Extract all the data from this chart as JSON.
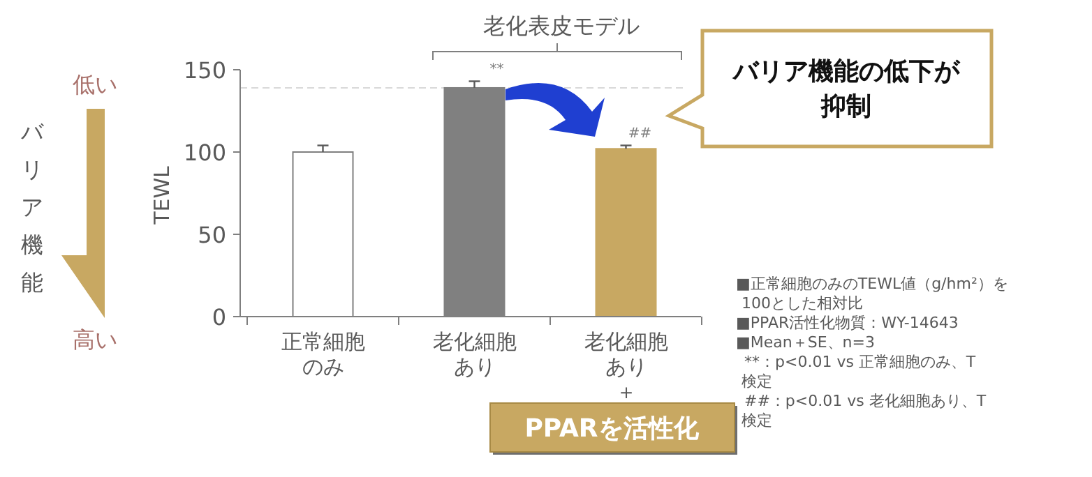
{
  "chart_data": {
    "type": "bar",
    "ylabel": "TEWL",
    "categories": [
      "正常細胞のみ",
      "老化細胞あり",
      "老化細胞あり＋"
    ],
    "values": [
      100,
      139,
      102
    ],
    "colors": [
      "#ffffff",
      "#808080",
      "#c8a862"
    ],
    "errors": [
      [
        100,
        104
      ],
      [
        139,
        143
      ],
      [
        102,
        104
      ]
    ],
    "ylim": [
      0,
      150
    ],
    "yticks": [
      0,
      50,
      100,
      150
    ],
    "ref_lines": [
      {
        "axis": "y",
        "value": 139,
        "color": "#d9d9d9",
        "line_style": "dashed"
      }
    ],
    "annotations": [
      "低い",
      "高い",
      "バリア機能",
      "老化表皮モデル",
      {
        "text": "**",
        "x": "老化細胞あり",
        "y": 143
      },
      {
        "text": "##",
        "x": "老化細胞あり＋",
        "y": 104
      },
      "バリア機能の低下が抑制",
      "PPARを活性化",
      "■正常細胞のみのTEWL値（g/hm²）を100とした相対比",
      "■PPAR活性化物質：WY-14643",
      "■Mean＋SE、n=3",
      "**：p<0.01 vs 正常細胞のみ、T検定",
      "##：p<0.01 vs 老化細胞あり、T検定"
    ]
  }
}
